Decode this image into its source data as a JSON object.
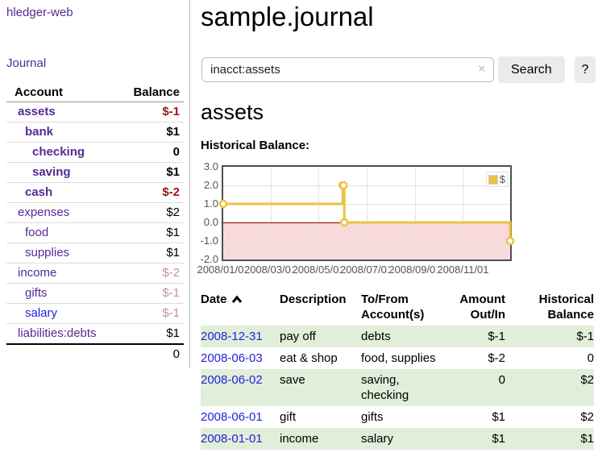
{
  "app": {
    "title": "hledger-web"
  },
  "sidebar": {
    "nav_journal": "Journal",
    "accounts": {
      "col_account": "Account",
      "col_balance": "Balance",
      "rows": [
        {
          "name": "assets",
          "indent": 0,
          "bold": true,
          "link": "purple",
          "balance": "$-1",
          "balance_style": "neg"
        },
        {
          "name": "bank",
          "indent": 1,
          "bold": true,
          "link": "purple",
          "balance": "$1",
          "balance_style": "pos"
        },
        {
          "name": "checking",
          "indent": 2,
          "bold": true,
          "link": "purple",
          "balance": "0",
          "balance_style": "pos"
        },
        {
          "name": "saving",
          "indent": 2,
          "bold": true,
          "link": "purple",
          "balance": "$1",
          "balance_style": "pos"
        },
        {
          "name": "cash",
          "indent": 1,
          "bold": true,
          "link": "purple",
          "balance": "$-2",
          "balance_style": "neg"
        },
        {
          "name": "expenses",
          "indent": 0,
          "bold": false,
          "link": "purple",
          "balance": "$2",
          "balance_style": "pos"
        },
        {
          "name": "food",
          "indent": 1,
          "bold": false,
          "link": "purple",
          "balance": "$1",
          "balance_style": "pos"
        },
        {
          "name": "supplies",
          "indent": 1,
          "bold": false,
          "link": "purple",
          "balance": "$1",
          "balance_style": "pos"
        },
        {
          "name": "income",
          "indent": 0,
          "bold": false,
          "link": "purple",
          "balance": "$-2",
          "balance_style": "neg-muted"
        },
        {
          "name": "gifts",
          "indent": 1,
          "bold": false,
          "link": "purple",
          "balance": "$-1",
          "balance_style": "neg-muted"
        },
        {
          "name": "salary",
          "indent": 1,
          "bold": false,
          "link": "blue",
          "balance": "$-1",
          "balance_style": "neg-muted"
        },
        {
          "name": "liabilities:debts",
          "indent": 0,
          "bold": false,
          "link": "purple",
          "balance": "$1",
          "balance_style": "pos"
        }
      ],
      "total": "0"
    }
  },
  "main": {
    "title": "sample.journal",
    "search": {
      "value": "inacct:assets",
      "clear_label": "×",
      "button": "Search",
      "help": "?"
    },
    "heading": "assets",
    "chart_title": "Historical Balance:"
  },
  "chart_data": {
    "type": "line",
    "step": true,
    "title": "Historical Balance",
    "legend": {
      "label": "$",
      "position": "top-right"
    },
    "series": [
      {
        "name": "$",
        "color": "#EDC240",
        "points": [
          {
            "date": "2008-01-01",
            "day": 0,
            "value": 1
          },
          {
            "date": "2008-06-01",
            "day": 152,
            "value": 2
          },
          {
            "date": "2008-06-02",
            "day": 153,
            "value": 2
          },
          {
            "date": "2008-06-03",
            "day": 154,
            "value": 0
          },
          {
            "date": "2008-12-31",
            "day": 365,
            "value": -1
          }
        ]
      }
    ],
    "x_ticks": [
      {
        "label": "2008/01/01",
        "day": 0
      },
      {
        "label": "2008/03/01",
        "day": 60
      },
      {
        "label": "2008/05/01",
        "day": 121
      },
      {
        "label": "2008/07/01",
        "day": 182
      },
      {
        "label": "2008/09/01",
        "day": 244
      },
      {
        "label": "2008/11/01",
        "day": 305
      }
    ],
    "x_range_days": [
      0,
      365
    ],
    "y_ticks": [
      "3.0",
      "2.0",
      "1.0",
      "0.0",
      "-1.0",
      "-2.0"
    ],
    "ylim": [
      -2,
      3
    ],
    "grid": true,
    "negative_region": true
  },
  "transactions": {
    "headers": {
      "date": "Date",
      "sort_icon": "chevron-up",
      "description": "Description",
      "accounts": "To/From Account(s)",
      "amount": "Amount Out/In",
      "balance": "Historical Balance"
    },
    "rows": [
      {
        "date": "2008-12-31",
        "description": "pay off",
        "accounts": "debts",
        "amount": "$-1",
        "amount_style": "neg",
        "balance": "$-1",
        "balance_style": "neg"
      },
      {
        "date": "2008-06-03",
        "description": "eat & shop",
        "accounts": "food, supplies",
        "amount": "$-2",
        "amount_style": "neg",
        "balance": "0",
        "balance_style": "pos"
      },
      {
        "date": "2008-06-02",
        "description": "save",
        "accounts": "saving, checking",
        "amount": "0",
        "amount_style": "pos",
        "balance": "$2",
        "balance_style": "pos"
      },
      {
        "date": "2008-06-01",
        "description": "gift",
        "accounts": "gifts",
        "amount": "$1",
        "amount_style": "pos",
        "balance": "$2",
        "balance_style": "pos"
      },
      {
        "date": "2008-01-01",
        "description": "income",
        "accounts": "salary",
        "amount": "$1",
        "amount_style": "pos",
        "balance": "$1",
        "balance_style": "pos"
      }
    ]
  },
  "colors": {
    "link_purple": "#552a94",
    "link_blue": "#2222dd",
    "negative": "#971717",
    "negative_muted": "#c89090",
    "row_stripe_green": "#e0eeda",
    "chart_line": "#EDC240",
    "chart_negative_fill": "#f9dada",
    "zero_line": "#8b0000",
    "axis_text": "#545454"
  }
}
